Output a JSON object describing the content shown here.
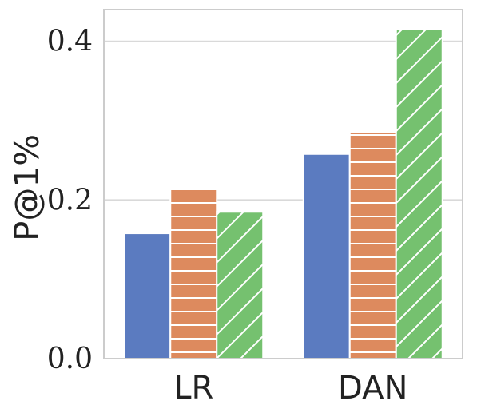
{
  "chart_data": {
    "type": "bar",
    "title": "",
    "xlabel": "",
    "ylabel": "P@1%",
    "categories": [
      "LR",
      "DAN"
    ],
    "ylim": [
      0,
      0.44
    ],
    "yticks": [
      "0.0",
      "0.2",
      "0.4"
    ],
    "ytick_values": [
      0,
      0.2,
      0.4
    ],
    "grid": true,
    "legend": "none",
    "series": [
      {
        "values": [
          0.158,
          0.258
        ],
        "color": "#5B7BC0",
        "pattern": "solid"
      },
      {
        "values": [
          0.215,
          0.285
        ],
        "color": "#DD8A5E",
        "pattern": "horizontal-lines"
      },
      {
        "values": [
          0.185,
          0.415
        ],
        "color": "#75C16F",
        "pattern": "diagonal-lines"
      }
    ]
  }
}
